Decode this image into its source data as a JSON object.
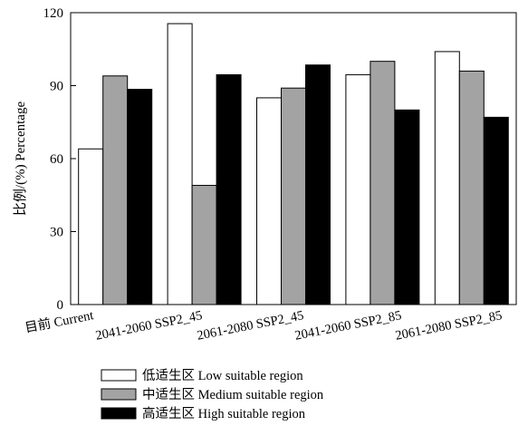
{
  "chart_data": {
    "type": "bar",
    "ylabel": "比例/(%) Percentage",
    "xlabel": "",
    "ylim": [
      0,
      120
    ],
    "yticks": [
      0,
      30,
      60,
      90,
      120
    ],
    "grid": false,
    "legend_position": "bottom",
    "categories": [
      "目前 Current",
      "2041-2060 SSP2_45",
      "2061-2080 SSP2_45",
      "2041-2060 SSP2_85",
      "2061-2080 SSP2_85"
    ],
    "series": [
      {
        "name": "低适生区 Low suitable region",
        "color": "#ffffff",
        "values": [
          64,
          115.5,
          85,
          94.5,
          104
        ]
      },
      {
        "name": "中适生区 Medium suitable region",
        "color": "#a3a3a3",
        "values": [
          94,
          49,
          89,
          100,
          96
        ]
      },
      {
        "name": "高适生区 High suitable region",
        "color": "#000000",
        "values": [
          88.5,
          94.5,
          98.5,
          80,
          77
        ]
      }
    ]
  }
}
